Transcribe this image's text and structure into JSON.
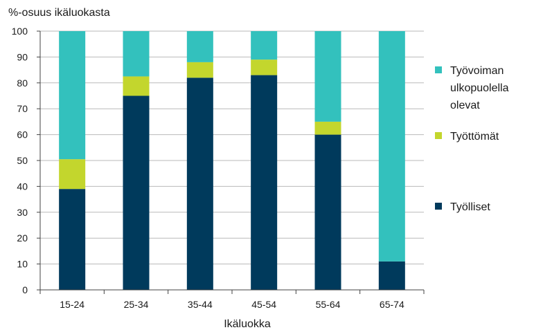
{
  "chart_data": {
    "type": "bar",
    "stacked": true,
    "ylabel": "%-osuus ikäluokasta",
    "xlabel": "Ikäluokka",
    "ylim": [
      0,
      100
    ],
    "yticks": [
      0,
      10,
      20,
      30,
      40,
      50,
      60,
      70,
      80,
      90,
      100
    ],
    "categories": [
      "15-24",
      "25-34",
      "35-44",
      "45-54",
      "55-64",
      "65-74"
    ],
    "grid": true,
    "legend_position": "right",
    "series": [
      {
        "name": "Työlliset",
        "color": "#003a5c",
        "values": [
          39,
          75,
          82,
          83,
          60,
          11
        ]
      },
      {
        "name": "Työttömät",
        "color": "#c3d62d",
        "values": [
          11.5,
          7.5,
          6,
          6,
          5,
          0
        ]
      },
      {
        "name": "Työvoiman ulkopuolella olevat",
        "color": "#33c1bd",
        "values": [
          49.5,
          17.5,
          12,
          11,
          35,
          89
        ]
      }
    ],
    "legend": [
      {
        "series": 2,
        "lines": [
          "Työvoiman",
          "ulkopuolella",
          "olevat"
        ]
      },
      {
        "series": 1,
        "lines": [
          "Työttömät"
        ]
      },
      {
        "series": 0,
        "lines": [
          "Työlliset"
        ]
      }
    ]
  }
}
